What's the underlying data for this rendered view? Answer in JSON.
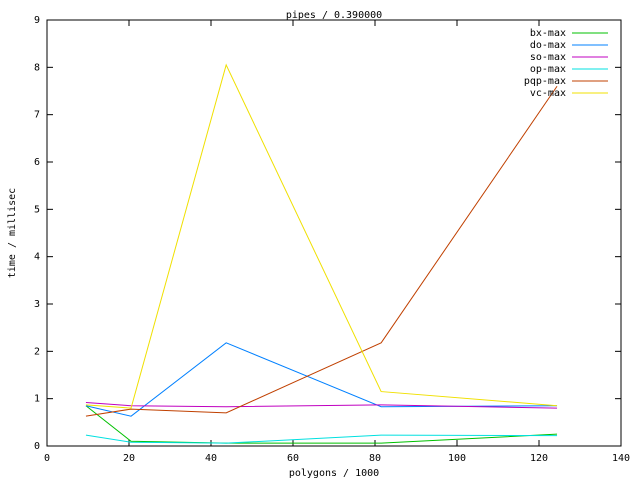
{
  "chart_data": {
    "type": "line",
    "title": "pipes / 0.390000",
    "x_label": "polygons / 1000",
    "y_label": "time / millisec",
    "x": [
      9.5,
      20.5,
      43.7,
      81.5,
      124.4
    ],
    "series": [
      {
        "name": "bx-max",
        "color": "#00c000",
        "values": [
          0.85,
          0.1,
          0.06,
          0.06,
          0.25
        ]
      },
      {
        "name": "do-max",
        "color": "#0080ff",
        "values": [
          0.85,
          0.63,
          2.18,
          0.83,
          0.85
        ]
      },
      {
        "name": "so-max",
        "color": "#c000c0",
        "values": [
          0.92,
          0.85,
          0.83,
          0.87,
          0.8
        ]
      },
      {
        "name": "op-max",
        "color": "#00e0e0",
        "values": [
          0.23,
          0.08,
          0.06,
          0.23,
          0.22
        ]
      },
      {
        "name": "pqp-max",
        "color": "#c04000",
        "values": [
          0.63,
          0.78,
          0.7,
          2.18,
          7.6
        ]
      },
      {
        "name": "vc-max",
        "color": "#f0e000",
        "values": [
          0.87,
          0.8,
          8.05,
          1.15,
          0.85
        ]
      }
    ],
    "xlim": [
      0,
      140
    ],
    "xticks": [
      0,
      20,
      40,
      60,
      80,
      100,
      120,
      140
    ],
    "ylim": [
      0,
      9
    ],
    "yticks": [
      0,
      1,
      2,
      3,
      4,
      5,
      6,
      7,
      8,
      9
    ],
    "legend": "top-right",
    "grid": false
  }
}
